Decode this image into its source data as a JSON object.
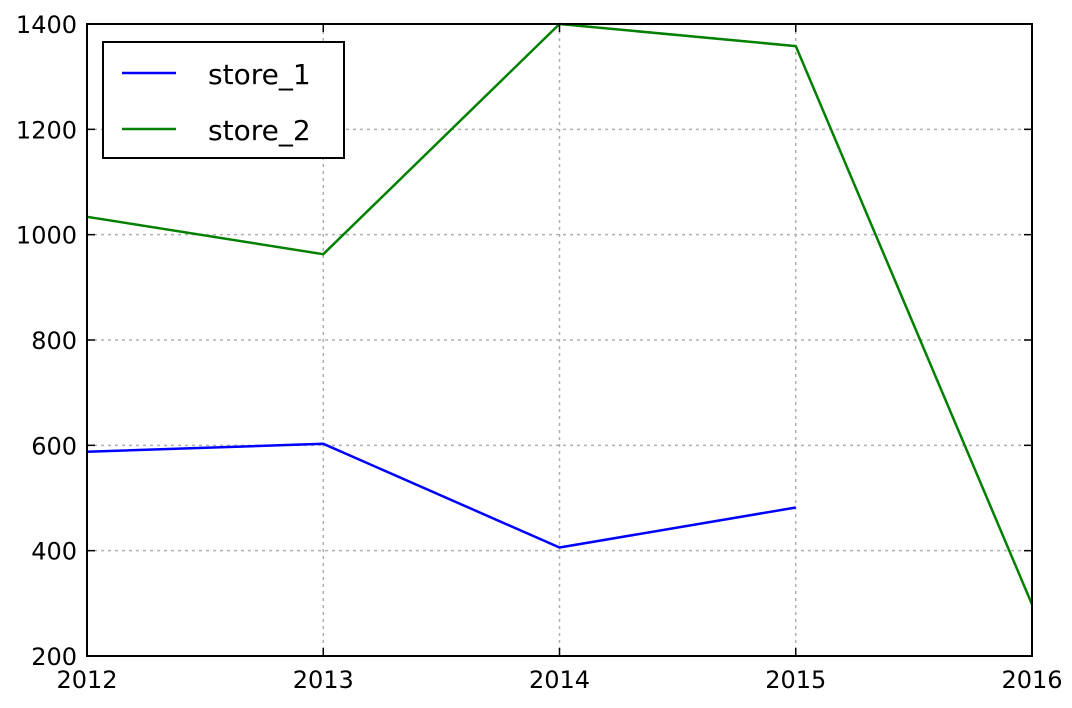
{
  "chart_data": {
    "type": "line",
    "title": "",
    "xlabel": "",
    "ylabel": "",
    "x": [
      2012,
      2013,
      2014,
      2015,
      2016
    ],
    "x_ticks": [
      "2012",
      "2013",
      "2014",
      "2015",
      "2016"
    ],
    "y_ticks": [
      "200",
      "400",
      "600",
      "800",
      "1000",
      "1200",
      "1400"
    ],
    "xlim": [
      2012,
      2016
    ],
    "ylim": [
      200,
      1400
    ],
    "grid": true,
    "legend_position": "top-left",
    "series": [
      {
        "name": "store_1",
        "color": "#0000ff",
        "values": [
          588,
          603,
          406,
          482,
          null
        ]
      },
      {
        "name": "store_2",
        "color": "#008000",
        "values": [
          1034,
          963,
          1400,
          1358,
          298
        ]
      }
    ]
  }
}
